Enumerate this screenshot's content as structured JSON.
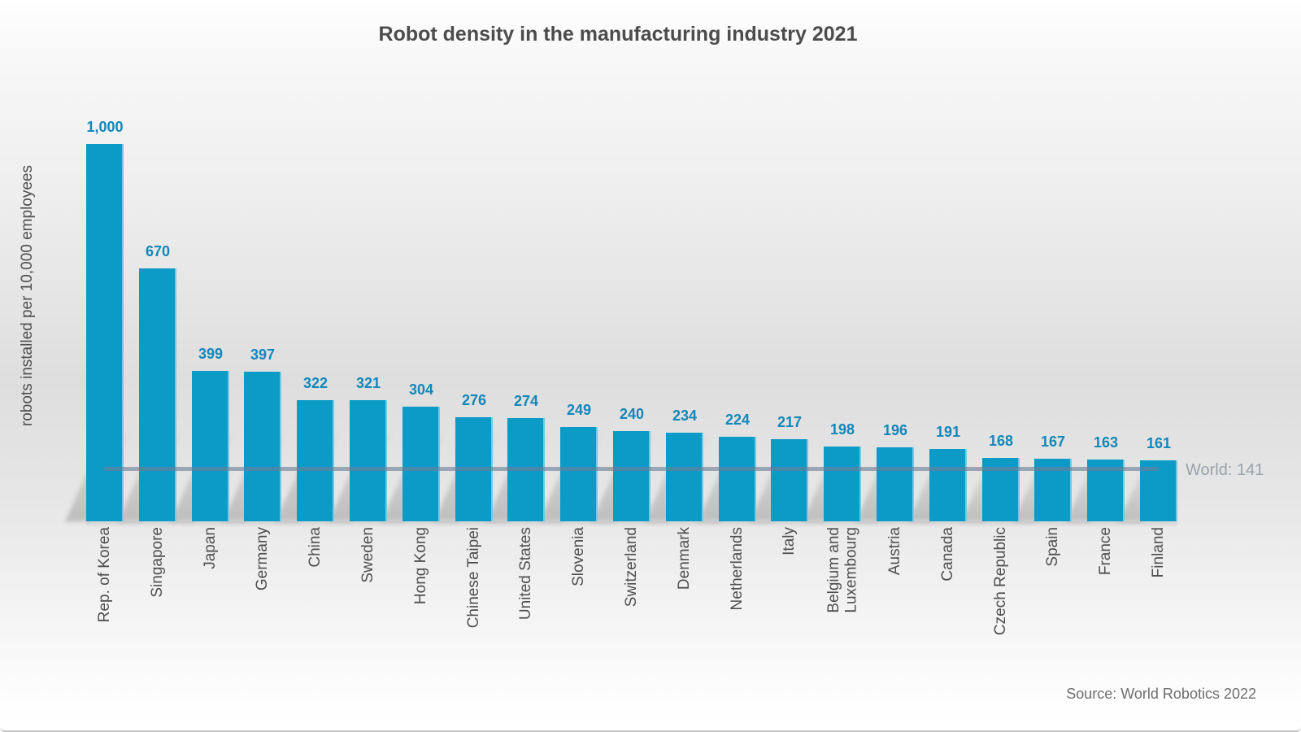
{
  "chart_data": {
    "type": "bar",
    "title": "Robot density in the manufacturing industry 2021",
    "ylabel": "robots installed per 10,000 employees",
    "xlabel": "",
    "source": "Source: World Robotics 2022",
    "categories": [
      "Rep. of Korea",
      "Singapore",
      "Japan",
      "Germany",
      "China",
      "Sweden",
      "Hong Kong",
      "Chinese Taipei",
      "United States",
      "Slovenia",
      "Switzerland",
      "Denmark",
      "Netherlands",
      "Italy",
      "Belgium and\nLuxembourg",
      "Austria",
      "Canada",
      "Czech Republic",
      "Spain",
      "France",
      "Finland"
    ],
    "values": [
      1000,
      670,
      399,
      397,
      322,
      321,
      304,
      276,
      274,
      249,
      240,
      234,
      224,
      217,
      198,
      196,
      191,
      168,
      167,
      163,
      161
    ],
    "value_labels": [
      "1,000",
      "670",
      "399",
      "397",
      "322",
      "321",
      "304",
      "276",
      "274",
      "249",
      "240",
      "234",
      "224",
      "217",
      "198",
      "196",
      "191",
      "168",
      "167",
      "163",
      "161"
    ],
    "reference_line": {
      "label": "World: 141",
      "value": 141
    },
    "ylim": [
      0,
      1000
    ],
    "grid": false,
    "legend": false,
    "colors": {
      "bar": "#0c9ac7",
      "bar_edge_highlight": "#9adbeb",
      "value_label": "#1287b9",
      "reference_line": "rgba(110,128,150,0.62)",
      "reference_label": "#9aa2ac",
      "axis_text": "#4f4f4f",
      "title": "#4c4c4c",
      "source": "#6e6e6e"
    }
  }
}
